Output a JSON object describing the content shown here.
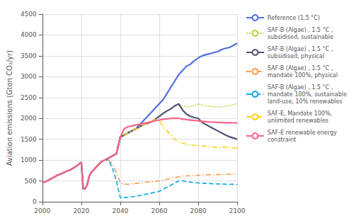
{
  "chart_data": {
    "type": "line",
    "ylabel": "Aviation emissions (Gton CO₂/yr)",
    "xlim": [
      2000,
      2100
    ],
    "ylim": [
      0,
      4500
    ],
    "xticks": [
      2000,
      2020,
      2040,
      2060,
      2080,
      2100
    ],
    "yticks": [
      0,
      500,
      1000,
      1500,
      2000,
      2500,
      3000,
      3500,
      4000,
      4500
    ],
    "grid": true,
    "legend": "right",
    "x": [
      2000,
      2002,
      2004,
      2006,
      2008,
      2010,
      2012,
      2014,
      2016,
      2018,
      2020,
      2021,
      2022,
      2023,
      2024,
      2025,
      2026,
      2028,
      2030,
      2032,
      2034,
      2036,
      2038,
      2040,
      2042,
      2044,
      2046,
      2048,
      2050,
      2052,
      2054,
      2056,
      2058,
      2060,
      2062,
      2064,
      2066,
      2068,
      2070,
      2072,
      2074,
      2076,
      2078,
      2080,
      2082,
      2084,
      2086,
      2088,
      2090,
      2092,
      2094,
      2096,
      2098,
      2100
    ],
    "series": [
      {
        "name": "Reference (1.5 °C)",
        "line_style": "solid",
        "values": [
          450,
          490,
          540,
          590,
          640,
          680,
          720,
          760,
          810,
          870,
          950,
          300,
          320,
          400,
          600,
          700,
          750,
          850,
          950,
          1000,
          1050,
          1100,
          1150,
          1550,
          1600,
          1650,
          1700,
          1750,
          1850,
          1950,
          2050,
          2150,
          2250,
          2350,
          2450,
          2600,
          2750,
          2900,
          3050,
          3150,
          3250,
          3300,
          3380,
          3450,
          3500,
          3530,
          3550,
          3580,
          3600,
          3650,
          3680,
          3700,
          3750,
          3800
        ]
      },
      {
        "name": "SAF-B (Algae) , 1.5 °C ,\nsubsidised, sustainable",
        "line_style": "dotted",
        "values": [
          450,
          490,
          540,
          590,
          640,
          680,
          720,
          760,
          810,
          870,
          950,
          300,
          320,
          400,
          600,
          700,
          750,
          850,
          950,
          1000,
          1050,
          1100,
          1150,
          1550,
          1600,
          1650,
          1700,
          1750,
          1800,
          1850,
          1880,
          1920,
          1980,
          2050,
          2120,
          2180,
          2230,
          2300,
          2350,
          2300,
          2280,
          2290,
          2300,
          2350,
          2320,
          2300,
          2290,
          2280,
          2270,
          2280,
          2290,
          2310,
          2330,
          2350
        ]
      },
      {
        "name": "SAF-B (Algae) , 1.5 °C ,\nsubsidised, physical",
        "line_style": "solid",
        "values": [
          450,
          490,
          540,
          590,
          640,
          680,
          720,
          760,
          810,
          870,
          950,
          300,
          320,
          400,
          600,
          700,
          750,
          850,
          950,
          1000,
          1050,
          1100,
          1150,
          1550,
          1600,
          1650,
          1700,
          1750,
          1800,
          1850,
          1880,
          1920,
          1980,
          2050,
          2120,
          2180,
          2230,
          2300,
          2350,
          2200,
          2100,
          2050,
          2020,
          2000,
          1900,
          1850,
          1800,
          1750,
          1700,
          1650,
          1600,
          1560,
          1530,
          1500
        ]
      },
      {
        "name": "SAF-B (Algae) , 1.5 °C ,\nmandate 100%, physical",
        "line_style": "dashdot",
        "values": [
          450,
          490,
          540,
          590,
          640,
          680,
          720,
          760,
          810,
          870,
          950,
          300,
          320,
          400,
          600,
          700,
          750,
          850,
          950,
          1000,
          1000,
          900,
          700,
          450,
          420,
          420,
          430,
          440,
          450,
          460,
          470,
          480,
          490,
          500,
          520,
          540,
          560,
          580,
          600,
          620,
          620,
          625,
          630,
          635,
          640,
          645,
          648,
          650,
          652,
          654,
          656,
          658,
          660,
          662
        ]
      },
      {
        "name": "SAF-B (Algae) , 1.5 °C ,\nmandate 100%, sustainable\nland-use, 10% renewables",
        "line_style": "dashed",
        "values": [
          450,
          490,
          540,
          590,
          640,
          680,
          720,
          760,
          810,
          870,
          950,
          300,
          320,
          400,
          600,
          700,
          750,
          850,
          950,
          1000,
          1000,
          800,
          500,
          100,
          100,
          110,
          120,
          130,
          150,
          170,
          190,
          210,
          230,
          250,
          300,
          350,
          400,
          450,
          500,
          500,
          480,
          470,
          460,
          450,
          445,
          440,
          435,
          430,
          428,
          425,
          422,
          420,
          418,
          415
        ]
      },
      {
        "name": "SAF-E, Mandate 100%,\nunlimited renewables",
        "line_style": "dashdot",
        "values": [
          450,
          490,
          540,
          590,
          640,
          680,
          720,
          760,
          810,
          870,
          950,
          300,
          320,
          400,
          600,
          700,
          750,
          850,
          950,
          1000,
          1050,
          1100,
          1150,
          1550,
          1600,
          1650,
          1700,
          1750,
          1800,
          1850,
          1880,
          1920,
          1980,
          1950,
          1800,
          1700,
          1600,
          1500,
          1430,
          1400,
          1380,
          1360,
          1350,
          1350,
          1340,
          1330,
          1320,
          1310,
          1310,
          1310,
          1310,
          1300,
          1290,
          1290
        ]
      },
      {
        "name": "SAF-E renewable energy\nconstraint",
        "line_style": "solid",
        "values": [
          450,
          490,
          540,
          590,
          640,
          680,
          720,
          760,
          810,
          870,
          950,
          300,
          320,
          400,
          600,
          700,
          750,
          850,
          950,
          1000,
          1050,
          1100,
          1150,
          1550,
          1750,
          1800,
          1820,
          1840,
          1860,
          1880,
          1900,
          1920,
          1940,
          1960,
          1980,
          1990,
          2000,
          2000,
          2000,
          1980,
          1970,
          1960,
          1950,
          1940,
          1930,
          1920,
          1915,
          1910,
          1905,
          1900,
          1895,
          1895,
          1893,
          1890
        ]
      }
    ]
  }
}
